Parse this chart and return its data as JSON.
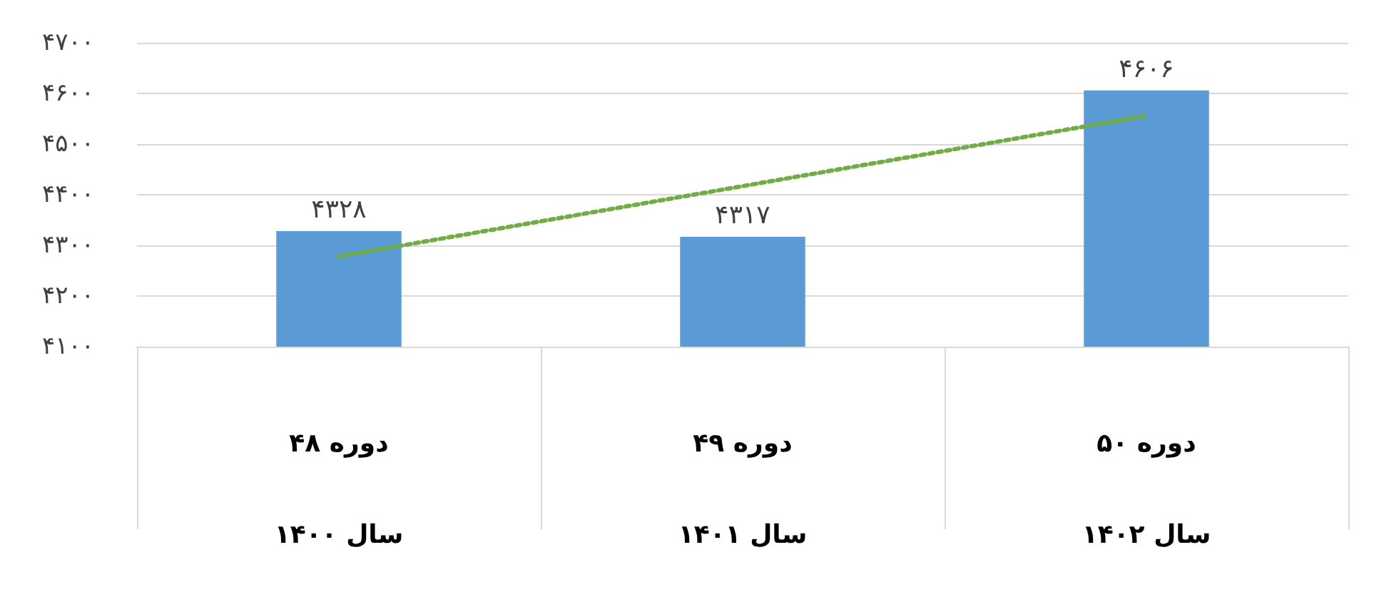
{
  "chart_data": {
    "type": "bar",
    "categories": [
      "دوره ۴۸\nسال ۱۴۰۰",
      "دوره ۴۹\nسال ۱۴۰۱",
      "دوره ۵۰\nسال ۱۴۰۲"
    ],
    "series": [
      {
        "color": "#5b9bd5",
        "values": [
          4328,
          4317,
          4606
        ],
        "value_labels": [
          "۴۳۲۸",
          "۴۳۱۷",
          "۴۶۰۶"
        ]
      },
      {
        "type": "line",
        "color": "#70ad47",
        "x": [
          "دوره ۴۸\nسال ۱۴۰۰",
          "دوره ۴۹\nسال ۱۴۰۱",
          "دوره ۵۰\nسال ۱۴۰۲"
        ],
        "values": [
          4278,
          4417,
          4556
        ],
        "line_style": "dotted",
        "marker": "none"
      }
    ],
    "ylim": [
      4100,
      4700
    ],
    "yticks": [
      {
        "value": 4100,
        "label": "۴۱۰۰"
      },
      {
        "value": 4200,
        "label": "۴۲۰۰"
      },
      {
        "value": 4300,
        "label": "۴۳۰۰"
      },
      {
        "value": 4400,
        "label": "۴۴۰۰"
      },
      {
        "value": 4500,
        "label": "۴۵۰۰"
      },
      {
        "value": 4600,
        "label": "۴۶۰۰"
      },
      {
        "value": 4700,
        "label": "۴۷۰۰"
      }
    ],
    "grid": "y"
  }
}
